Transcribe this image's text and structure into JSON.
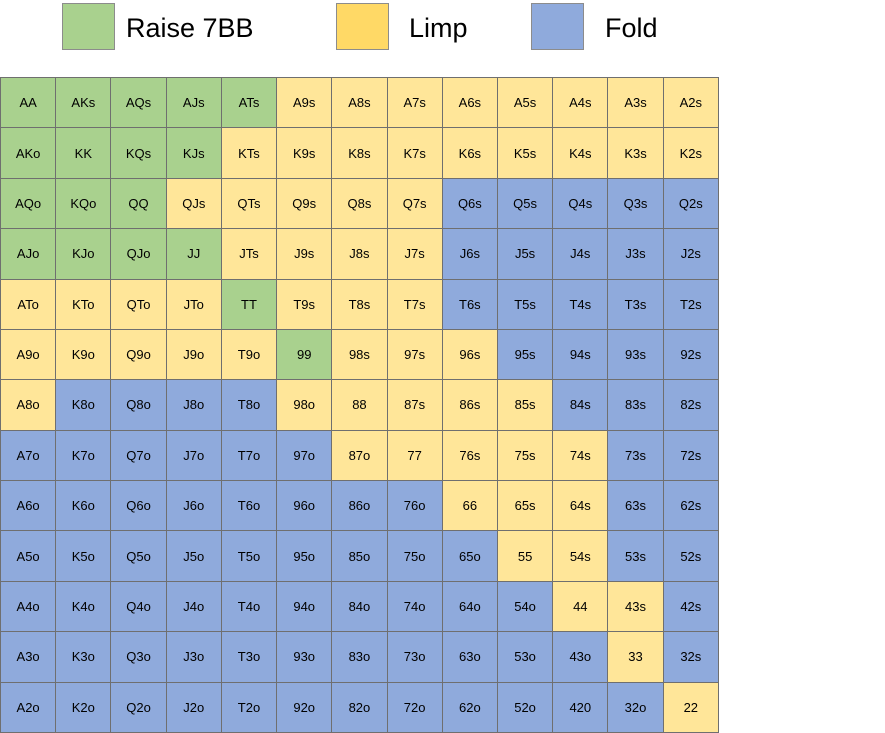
{
  "legend": [
    {
      "label": "Raise 7BB",
      "color": "#a9d18e",
      "key": "R"
    },
    {
      "label": "Limp",
      "color": "#ffe699",
      "key": "L"
    },
    {
      "label": "Fold",
      "color": "#8faadc",
      "key": "F"
    }
  ],
  "colors": {
    "R": "#a9d18e",
    "L": "#ffe699",
    "F": "#8faadc",
    "legend_limp": "#ffd966",
    "legend_fold": "#8faadc"
  },
  "grid": [
    [
      "AA",
      "AKs",
      "AQs",
      "AJs",
      "ATs",
      "A9s",
      "A8s",
      "A7s",
      "A6s",
      "A5s",
      "A4s",
      "A3s",
      "A2s"
    ],
    [
      "AKo",
      "KK",
      "KQs",
      "KJs",
      "KTs",
      "K9s",
      "K8s",
      "K7s",
      "K6s",
      "K5s",
      "K4s",
      "K3s",
      "K2s"
    ],
    [
      "AQo",
      "KQo",
      "QQ",
      "QJs",
      "QTs",
      "Q9s",
      "Q8s",
      "Q7s",
      "Q6s",
      "Q5s",
      "Q4s",
      "Q3s",
      "Q2s"
    ],
    [
      "AJo",
      "KJo",
      "QJo",
      "JJ",
      "JTs",
      "J9s",
      "J8s",
      "J7s",
      "J6s",
      "J5s",
      "J4s",
      "J3s",
      "J2s"
    ],
    [
      "ATo",
      "KTo",
      "QTo",
      "JTo",
      "TT",
      "T9s",
      "T8s",
      "T7s",
      "T6s",
      "T5s",
      "T4s",
      "T3s",
      "T2s"
    ],
    [
      "A9o",
      "K9o",
      "Q9o",
      "J9o",
      "T9o",
      "99",
      "98s",
      "97s",
      "96s",
      "95s",
      "94s",
      "93s",
      "92s"
    ],
    [
      "A8o",
      "K8o",
      "Q8o",
      "J8o",
      "T8o",
      "98o",
      "88",
      "87s",
      "86s",
      "85s",
      "84s",
      "83s",
      "82s"
    ],
    [
      "A7o",
      "K7o",
      "Q7o",
      "J7o",
      "T7o",
      "97o",
      "87o",
      "77",
      "76s",
      "75s",
      "74s",
      "73s",
      "72s"
    ],
    [
      "A6o",
      "K6o",
      "Q6o",
      "J6o",
      "T6o",
      "96o",
      "86o",
      "76o",
      "66",
      "65s",
      "64s",
      "63s",
      "62s"
    ],
    [
      "A5o",
      "K5o",
      "Q5o",
      "J5o",
      "T5o",
      "95o",
      "85o",
      "75o",
      "65o",
      "55",
      "54s",
      "53s",
      "52s"
    ],
    [
      "A4o",
      "K4o",
      "Q4o",
      "J4o",
      "T4o",
      "94o",
      "84o",
      "74o",
      "64o",
      "54o",
      "44",
      "43s",
      "42s"
    ],
    [
      "A3o",
      "K3o",
      "Q3o",
      "J3o",
      "T3o",
      "93o",
      "83o",
      "73o",
      "63o",
      "53o",
      "43o",
      "33",
      "32s"
    ],
    [
      "A2o",
      "K2o",
      "Q2o",
      "J2o",
      "T2o",
      "92o",
      "82o",
      "72o",
      "62o",
      "52o",
      "420",
      "32o",
      "22"
    ]
  ],
  "actions": [
    "RRRRRLLLLLLLL",
    "RRRRLLLLLLLLL",
    "RRRLLLLLFFFFF",
    "RRRRLLLLFFFFF",
    "LLLLRLLLFFFFF",
    "LLLLLRLLLFFFF",
    "LFFFFLLLLLFFF",
    "FFFFFFLLLLLFF",
    "FFFFFFFFLLLFF",
    "FFFFFFFFFLLFF",
    "FFFFFFFFFFLLF",
    "FFFFFFFFFFFLF",
    "FFFFFFFFFFFFL"
  ]
}
